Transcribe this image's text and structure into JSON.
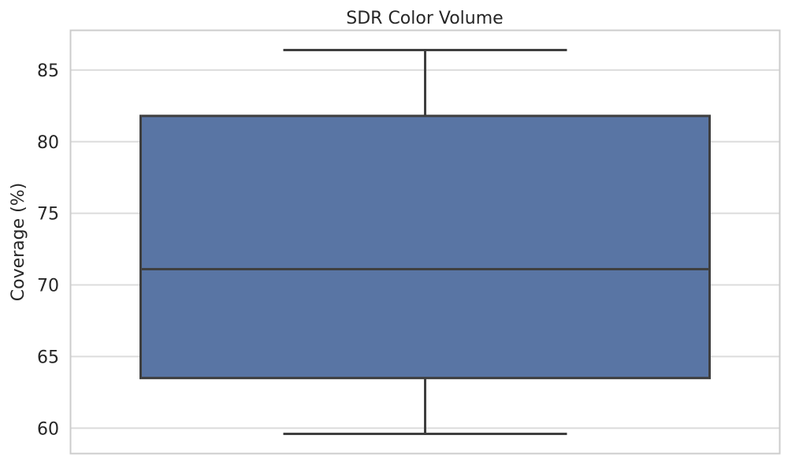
{
  "chart_data": {
    "type": "box",
    "title": "SDR Color Volume",
    "xlabel": "",
    "ylabel": "Coverage (%)",
    "ylim": [
      58.2,
      87.8
    ],
    "yticks": [
      60,
      65,
      70,
      75,
      80,
      85
    ],
    "grid": true,
    "box": {
      "whisker_low": 59.6,
      "q1": 63.5,
      "median": 71.1,
      "q3": 81.8,
      "whisker_high": 86.4
    },
    "colors": {
      "box_fill": "#5975a4",
      "line": "#3f3f3f",
      "grid": "#dcdcdc",
      "frame": "#cccccc"
    }
  }
}
